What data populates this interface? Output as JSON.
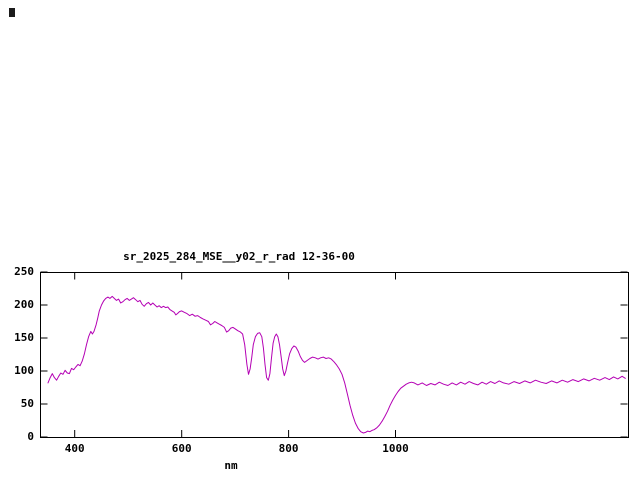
{
  "window": {
    "background": "#ffffff"
  },
  "chart_data": {
    "type": "line",
    "title": "sr_2025_284_MSE__y02_r_rad 12-36-00",
    "xlabel": "nm",
    "ylabel": "",
    "xlim": [
      335,
      1435
    ],
    "ylim": [
      0,
      250
    ],
    "xticks": [
      400,
      600,
      800,
      1000
    ],
    "yticks": [
      0,
      50,
      100,
      150,
      200,
      250
    ],
    "grid": false,
    "legend": "none",
    "line_color": "#b400b4",
    "frame_color": "#000000",
    "series_name": "spectral-radiance",
    "points": [
      [
        350,
        82
      ],
      [
        354,
        90
      ],
      [
        358,
        96
      ],
      [
        362,
        90
      ],
      [
        366,
        86
      ],
      [
        370,
        92
      ],
      [
        374,
        97
      ],
      [
        378,
        95
      ],
      [
        382,
        101
      ],
      [
        386,
        97
      ],
      [
        390,
        96
      ],
      [
        394,
        104
      ],
      [
        398,
        102
      ],
      [
        402,
        106
      ],
      [
        406,
        110
      ],
      [
        410,
        108
      ],
      [
        414,
        115
      ],
      [
        418,
        126
      ],
      [
        422,
        140
      ],
      [
        426,
        152
      ],
      [
        430,
        160
      ],
      [
        433,
        156
      ],
      [
        436,
        160
      ],
      [
        440,
        170
      ],
      [
        443,
        180
      ],
      [
        446,
        191
      ],
      [
        450,
        200
      ],
      [
        454,
        206
      ],
      [
        458,
        210
      ],
      [
        462,
        212
      ],
      [
        466,
        210
      ],
      [
        470,
        213
      ],
      [
        474,
        210
      ],
      [
        478,
        207
      ],
      [
        482,
        209
      ],
      [
        486,
        203
      ],
      [
        490,
        205
      ],
      [
        494,
        208
      ],
      [
        498,
        210
      ],
      [
        502,
        207
      ],
      [
        506,
        209
      ],
      [
        510,
        211
      ],
      [
        514,
        208
      ],
      [
        518,
        205
      ],
      [
        522,
        207
      ],
      [
        526,
        201
      ],
      [
        530,
        198
      ],
      [
        534,
        202
      ],
      [
        538,
        204
      ],
      [
        542,
        200
      ],
      [
        546,
        203
      ],
      [
        550,
        200
      ],
      [
        554,
        197
      ],
      [
        558,
        199
      ],
      [
        562,
        196
      ],
      [
        566,
        198
      ],
      [
        570,
        196
      ],
      [
        574,
        197
      ],
      [
        578,
        193
      ],
      [
        582,
        191
      ],
      [
        586,
        189
      ],
      [
        589,
        185
      ],
      [
        592,
        187
      ],
      [
        596,
        190
      ],
      [
        600,
        191
      ],
      [
        605,
        189
      ],
      [
        610,
        187
      ],
      [
        615,
        184
      ],
      [
        620,
        186
      ],
      [
        625,
        183
      ],
      [
        630,
        184
      ],
      [
        635,
        181
      ],
      [
        640,
        179
      ],
      [
        645,
        177
      ],
      [
        650,
        175
      ],
      [
        654,
        170
      ],
      [
        658,
        172
      ],
      [
        662,
        175
      ],
      [
        666,
        173
      ],
      [
        670,
        171
      ],
      [
        675,
        169
      ],
      [
        680,
        166
      ],
      [
        684,
        159
      ],
      [
        688,
        161
      ],
      [
        692,
        165
      ],
      [
        696,
        166
      ],
      [
        700,
        164
      ],
      [
        705,
        161
      ],
      [
        710,
        159
      ],
      [
        714,
        156
      ],
      [
        718,
        140
      ],
      [
        722,
        110
      ],
      [
        725,
        95
      ],
      [
        728,
        103
      ],
      [
        731,
        120
      ],
      [
        734,
        140
      ],
      [
        738,
        152
      ],
      [
        742,
        157
      ],
      [
        746,
        158
      ],
      [
        750,
        152
      ],
      [
        753,
        135
      ],
      [
        756,
        110
      ],
      [
        759,
        90
      ],
      [
        762,
        86
      ],
      [
        765,
        96
      ],
      [
        768,
        120
      ],
      [
        771,
        142
      ],
      [
        774,
        152
      ],
      [
        777,
        156
      ],
      [
        780,
        152
      ],
      [
        783,
        140
      ],
      [
        786,
        122
      ],
      [
        789,
        103
      ],
      [
        792,
        93
      ],
      [
        795,
        100
      ],
      [
        798,
        112
      ],
      [
        802,
        126
      ],
      [
        806,
        134
      ],
      [
        810,
        138
      ],
      [
        814,
        136
      ],
      [
        818,
        130
      ],
      [
        822,
        122
      ],
      [
        826,
        116
      ],
      [
        830,
        113
      ],
      [
        835,
        116
      ],
      [
        840,
        119
      ],
      [
        845,
        121
      ],
      [
        850,
        120
      ],
      [
        855,
        118
      ],
      [
        860,
        120
      ],
      [
        865,
        121
      ],
      [
        870,
        119
      ],
      [
        875,
        120
      ],
      [
        880,
        118
      ],
      [
        885,
        114
      ],
      [
        890,
        109
      ],
      [
        895,
        103
      ],
      [
        900,
        95
      ],
      [
        905,
        82
      ],
      [
        910,
        65
      ],
      [
        915,
        48
      ],
      [
        920,
        33
      ],
      [
        925,
        21
      ],
      [
        930,
        13
      ],
      [
        935,
        8
      ],
      [
        940,
        6
      ],
      [
        944,
        7
      ],
      [
        948,
        9
      ],
      [
        952,
        8
      ],
      [
        956,
        10
      ],
      [
        960,
        11
      ],
      [
        965,
        14
      ],
      [
        970,
        18
      ],
      [
        975,
        24
      ],
      [
        980,
        31
      ],
      [
        985,
        39
      ],
      [
        990,
        48
      ],
      [
        995,
        56
      ],
      [
        1000,
        63
      ],
      [
        1005,
        69
      ],
      [
        1010,
        74
      ],
      [
        1015,
        77
      ],
      [
        1020,
        80
      ],
      [
        1025,
        82
      ],
      [
        1030,
        83
      ],
      [
        1035,
        82
      ],
      [
        1042,
        79
      ],
      [
        1050,
        82
      ],
      [
        1058,
        78
      ],
      [
        1066,
        81
      ],
      [
        1074,
        79
      ],
      [
        1082,
        83
      ],
      [
        1090,
        80
      ],
      [
        1098,
        78
      ],
      [
        1106,
        82
      ],
      [
        1114,
        79
      ],
      [
        1122,
        83
      ],
      [
        1130,
        80
      ],
      [
        1138,
        84
      ],
      [
        1146,
        81
      ],
      [
        1154,
        79
      ],
      [
        1162,
        83
      ],
      [
        1170,
        80
      ],
      [
        1178,
        84
      ],
      [
        1186,
        81
      ],
      [
        1194,
        85
      ],
      [
        1202,
        82
      ],
      [
        1212,
        80
      ],
      [
        1222,
        84
      ],
      [
        1232,
        81
      ],
      [
        1242,
        85
      ],
      [
        1252,
        82
      ],
      [
        1262,
        86
      ],
      [
        1272,
        83
      ],
      [
        1282,
        81
      ],
      [
        1292,
        85
      ],
      [
        1302,
        82
      ],
      [
        1312,
        86
      ],
      [
        1322,
        83
      ],
      [
        1332,
        87
      ],
      [
        1342,
        84
      ],
      [
        1352,
        88
      ],
      [
        1362,
        85
      ],
      [
        1372,
        89
      ],
      [
        1382,
        86
      ],
      [
        1392,
        90
      ],
      [
        1400,
        87
      ],
      [
        1408,
        91
      ],
      [
        1416,
        88
      ],
      [
        1424,
        92
      ],
      [
        1430,
        89
      ]
    ]
  }
}
